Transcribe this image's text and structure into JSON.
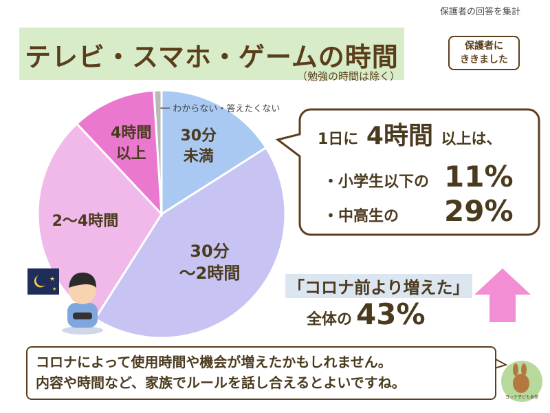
{
  "top_note": "保護者の回答を集計",
  "title": "テレビ・スマホ・ゲームの時間",
  "subtitle": "（勉強の時間は除く）",
  "badge": [
    "保護者に",
    "ききました"
  ],
  "chart_data": {
    "type": "pie",
    "start": "top",
    "direction": "clockwise",
    "slices": [
      {
        "label": "30分未満",
        "lines": [
          "30分",
          "未満"
        ],
        "value": 16,
        "color": "#a9c9f2"
      },
      {
        "label": "30分～2時間",
        "lines": [
          "30分",
          "～2時間"
        ],
        "value": 43,
        "color": "#c7c4f3"
      },
      {
        "label": "2～4時間",
        "lines": [
          "2～4時間"
        ],
        "value": 29,
        "color": "#f1b8ea"
      },
      {
        "label": "4時間以上",
        "lines": [
          "4時間",
          "以上"
        ],
        "value": 11,
        "color": "#ea78cf"
      },
      {
        "label": "わからない・答えたくない",
        "lines": [],
        "value": 1,
        "color": "#b9b9b9"
      }
    ],
    "callout": "わからない・答えたくない"
  },
  "bubble": {
    "line1_pre": "1日に",
    "line1_big": "4時間",
    "line1_post": "以上は、",
    "row1_label": "・小学生以下の",
    "row1_value": "11%",
    "row2_label": "・中高生の",
    "row2_value": "29%"
  },
  "corona": {
    "line1": "「コロナ前より増えた」",
    "line2_pre": "全体の",
    "line2_value": "43%"
  },
  "bottom": {
    "line1": "コロナによって使用時間や機会が増えたかもしれません。",
    "line2": "内容や時間など、家族でルールを話し合えるとよいですね。"
  },
  "mascot_text": "ヨッテ子ども食堂"
}
